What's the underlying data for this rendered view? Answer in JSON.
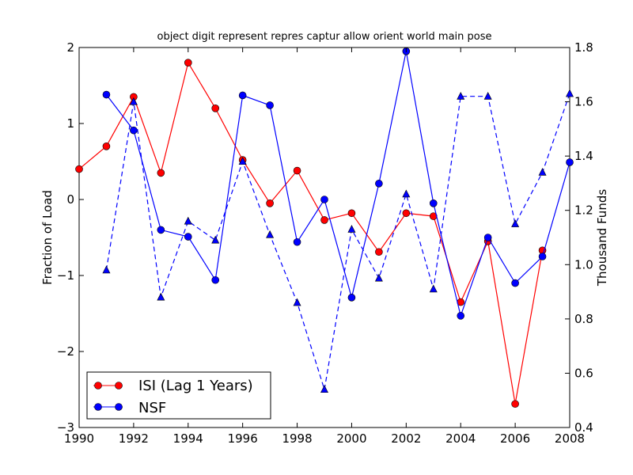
{
  "chart_data": {
    "type": "line",
    "title": "object digit represent repres captur allow orient world main pose",
    "xlabel": "",
    "ylabel": "Fraction of Load",
    "y2label": "Thousand Funds",
    "xlim": [
      1990,
      2008
    ],
    "ylim": [
      -3,
      2
    ],
    "y2lim": [
      0.4,
      1.8
    ],
    "x_ticks": [
      "1990",
      "1992",
      "1994",
      "1996",
      "1998",
      "2000",
      "2002",
      "2004",
      "2006",
      "2008"
    ],
    "y_ticks": [
      "−3",
      "−2",
      "−1",
      "0",
      "1",
      "2"
    ],
    "y2_ticks": [
      "0.4",
      "0.6",
      "0.8",
      "1.0",
      "1.2",
      "1.4",
      "1.6",
      "1.8"
    ],
    "legend_position": "lower-left",
    "series": [
      {
        "name": "ISI (Lag 1 Years)",
        "axis": "left",
        "color": "#ff0000",
        "style": "solid",
        "marker": "circle",
        "x": [
          1990,
          1991,
          1992,
          1993,
          1994,
          1995,
          1996,
          1997,
          1998,
          1999,
          2000,
          2001,
          2002,
          2003,
          2004,
          2005,
          2006,
          2007
        ],
        "values": [
          0.4,
          0.7,
          1.35,
          0.35,
          1.8,
          1.2,
          0.52,
          -0.05,
          0.38,
          -0.27,
          -0.18,
          -0.69,
          -0.18,
          -0.22,
          -1.35,
          -0.55,
          -2.69,
          -0.67
        ]
      },
      {
        "name": "NSF",
        "axis": "left",
        "color": "#0000ff",
        "style": "solid",
        "marker": "circle",
        "x": [
          1991,
          1992,
          1993,
          1994,
          1995,
          1996,
          1997,
          1998,
          1999,
          2000,
          2001,
          2002,
          2003,
          2004,
          2005,
          2006,
          2007,
          2008
        ],
        "values": [
          1.38,
          0.91,
          -0.4,
          -0.49,
          -1.06,
          1.37,
          1.24,
          -0.56,
          0.0,
          -1.29,
          0.21,
          1.95,
          -0.05,
          -1.53,
          -0.5,
          -1.1,
          -0.75,
          0.49
        ]
      },
      {
        "name": "",
        "axis": "right",
        "color": "#0000ff",
        "style": "dashed",
        "marker": "triangle",
        "x": [
          1991,
          1992,
          1993,
          1994,
          1995,
          1996,
          1997,
          1998,
          1999,
          2000,
          2001,
          2002,
          2003,
          2004,
          2005,
          2006,
          2007,
          2008
        ],
        "values": [
          0.98,
          1.6,
          0.88,
          1.16,
          1.09,
          1.38,
          1.11,
          0.86,
          0.54,
          1.13,
          0.95,
          1.26,
          0.91,
          1.62,
          1.62,
          1.15,
          1.34,
          1.63
        ]
      }
    ]
  }
}
